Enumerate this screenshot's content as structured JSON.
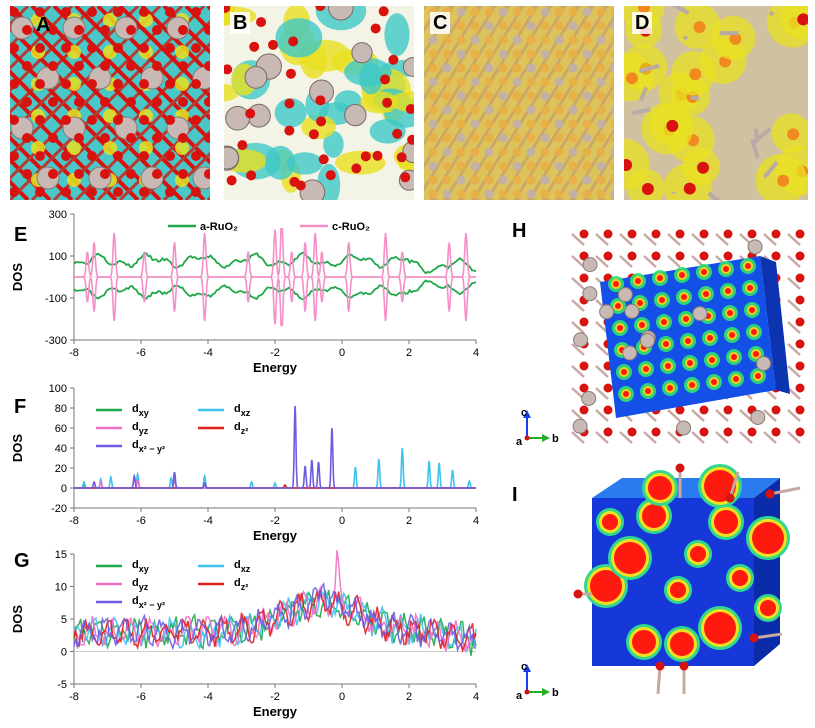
{
  "panel_labels": {
    "A": "A",
    "B": "B",
    "C": "C",
    "D": "D",
    "E": "E",
    "F": "F",
    "G": "G",
    "H": "H",
    "I": "I"
  },
  "colors": {
    "a_ruo2": "#1fa84a",
    "c_ruo2": "#f48fc8",
    "dxy": "#1fa84a",
    "dxz": "#3cc3ef",
    "dyz": "#f070c8",
    "dz2": "#e0201c",
    "dx2y2": "#6b5ce0",
    "oxygen": "#d8120f",
    "ruthenium": "#c9b9b4",
    "iso_yellow": "#e8e020",
    "iso_cyan": "#3ec8c8",
    "density_blue": "#1040e0",
    "density_red": "#ff1a10"
  },
  "chart_data": [
    {
      "panel": "E",
      "type": "line",
      "xlabel": "Energy",
      "ylabel": "DOS",
      "xlim": [
        -8,
        4
      ],
      "ylim": [
        -300,
        300
      ],
      "xticks": [
        "-8",
        "-6",
        "-4",
        "-2",
        "0",
        "2",
        "4"
      ],
      "yticks": [
        "300",
        "100",
        "-100",
        "-300"
      ],
      "series": [
        {
          "name": "a-RuO₂",
          "description": "spin-up ~ +55 to +110, spin-down mirror"
        },
        {
          "name": "c-RuO₂",
          "spikes": [
            -7.6,
            -7.4,
            -6.8,
            -5.9,
            -5.0,
            -4.1,
            -2.8,
            -2.0,
            -1.8,
            -1.5,
            -1.1,
            -0.8,
            -0.6,
            0.2,
            1.3,
            1.8,
            3.2,
            3.7
          ]
        }
      ]
    },
    {
      "panel": "F",
      "type": "line",
      "xlabel": "Energy",
      "ylabel": "DOS",
      "xlim": [
        -8,
        4
      ],
      "ylim": [
        -20,
        100
      ],
      "xticks": [
        "-8",
        "-6",
        "-4",
        "-2",
        "0",
        "2",
        "4"
      ],
      "yticks": [
        "100",
        "80",
        "60",
        "40",
        "20",
        "0",
        "-20"
      ],
      "legend": [
        "d",
        "d",
        "d",
        "d",
        "d"
      ],
      "series": [
        {
          "name": "dxy",
          "peaks": [
            [
              -7.7,
              3
            ]
          ]
        },
        {
          "name": "dxz",
          "peaks": [
            [
              -7.7,
              6
            ],
            [
              -7.2,
              9
            ],
            [
              -6.9,
              11
            ],
            [
              -6.1,
              14
            ],
            [
              -5.1,
              10
            ],
            [
              -4.1,
              12
            ],
            [
              -2.7,
              6
            ],
            [
              -2.0,
              5
            ],
            [
              0.4,
              21
            ],
            [
              1.1,
              29
            ],
            [
              1.8,
              40
            ],
            [
              2.6,
              27
            ],
            [
              2.9,
              25
            ],
            [
              3.3,
              18
            ],
            [
              3.8,
              7
            ]
          ]
        },
        {
          "name": "dyz",
          "peaks": [
            [
              -7.2,
              6
            ],
            [
              -6.1,
              8
            ],
            [
              -5.0,
              9
            ]
          ]
        },
        {
          "name": "dz2",
          "peaks": [
            [
              -4.1,
              4
            ],
            [
              -1.7,
              3
            ]
          ]
        },
        {
          "name": "dx2y2",
          "peaks": [
            [
              -7.4,
              6
            ],
            [
              -6.2,
              12
            ],
            [
              -5.0,
              16
            ],
            [
              -4.1,
              5
            ],
            [
              -1.4,
              82
            ],
            [
              -1.1,
              22
            ],
            [
              -0.9,
              28
            ],
            [
              -0.7,
              26
            ],
            [
              -0.3,
              60
            ]
          ]
        }
      ]
    },
    {
      "panel": "G",
      "type": "line",
      "xlabel": "Energy",
      "ylabel": "DOS",
      "xlim": [
        -8,
        4
      ],
      "ylim": [
        -5,
        15
      ],
      "xticks": [
        "-8",
        "-6",
        "-4",
        "-2",
        "0",
        "2",
        "4"
      ],
      "yticks": [
        "15",
        "10",
        "5",
        "0",
        "-5"
      ],
      "legend": [
        "d",
        "d",
        "d",
        "d",
        "d"
      ],
      "series": [
        {
          "name": "dxy"
        },
        {
          "name": "dxz"
        },
        {
          "name": "dyz",
          "peak": [
            -0.15,
            14
          ]
        },
        {
          "name": "dz2"
        },
        {
          "name": "dx2y2",
          "peak": [
            -0.55,
            11.5
          ]
        }
      ]
    }
  ],
  "legend_subs": {
    "F": [
      "xy",
      "yz",
      "x² − y²",
      "xz",
      "z²"
    ],
    "G": [
      "xy",
      "yz",
      "x² − y²",
      "xz",
      "z²"
    ]
  },
  "axes_triad": {
    "c": "c",
    "a": "a",
    "b": "b"
  }
}
